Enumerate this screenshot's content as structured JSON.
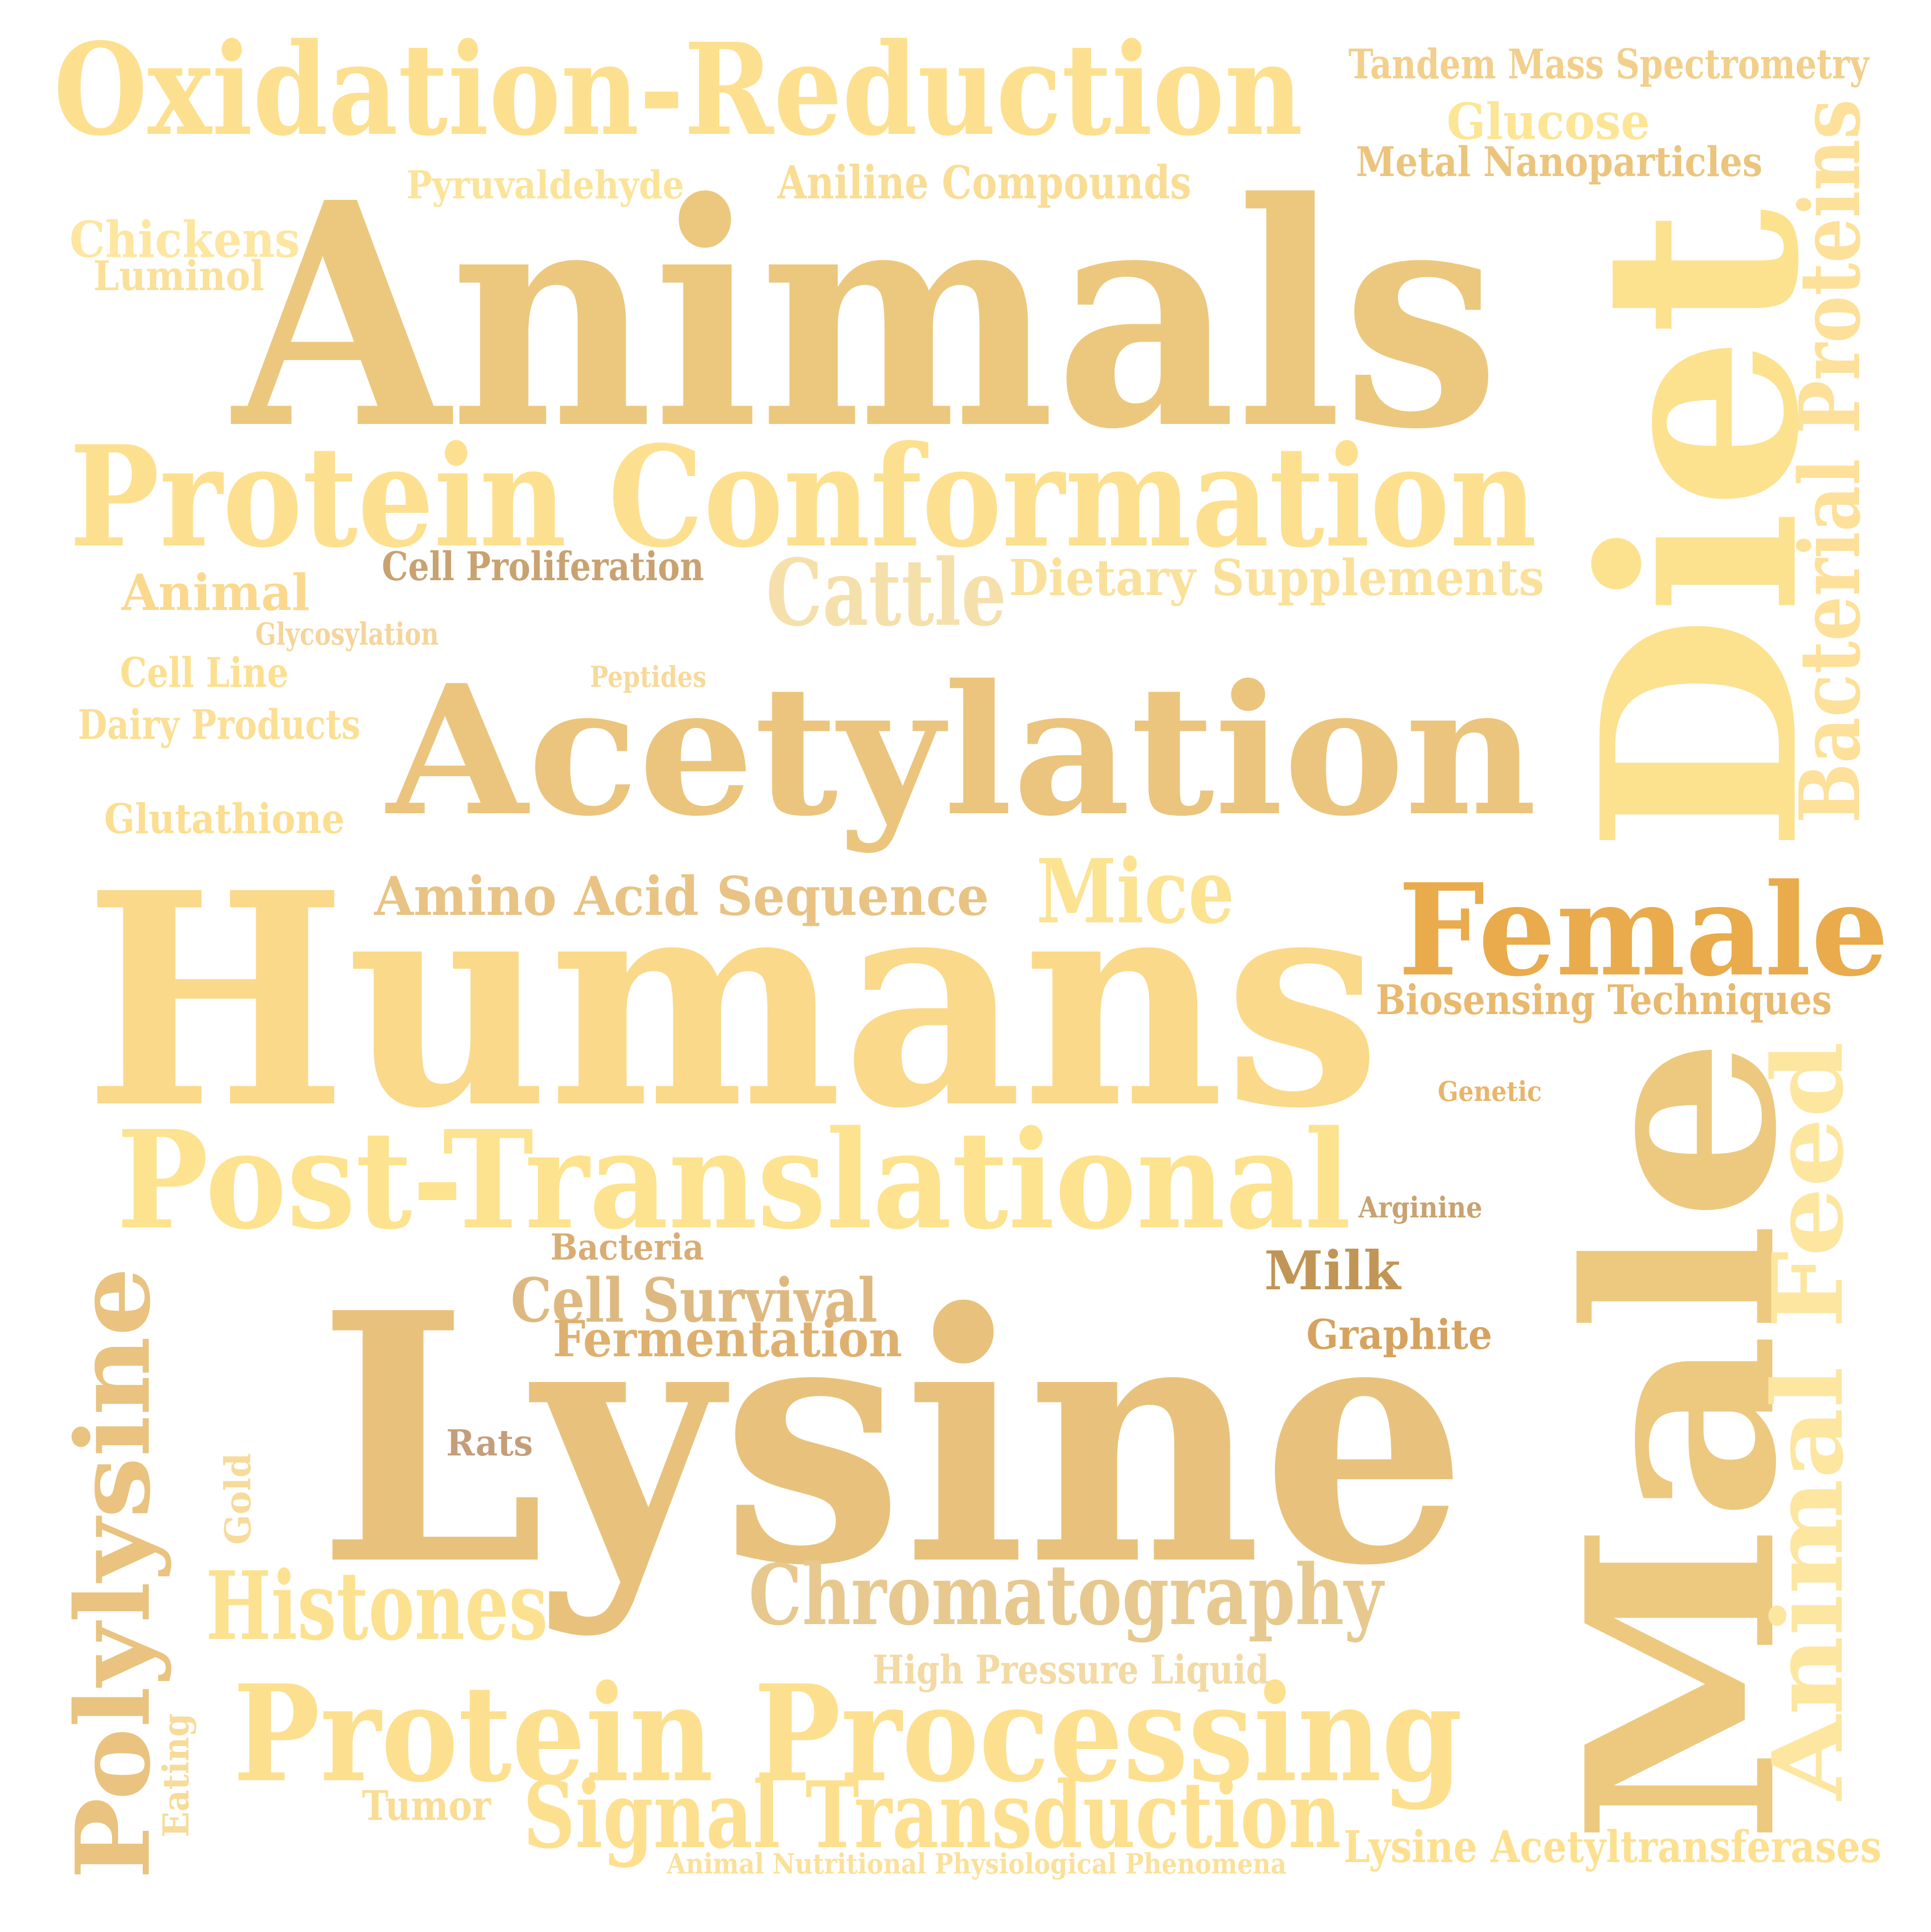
{
  "words": [
    {
      "id": "oxidation-reduction",
      "text": "Oxidation-Reduction",
      "color": "#FDE08F"
    },
    {
      "id": "tandem-mass-spectrometry",
      "text": "Tandem Mass Spectrometry",
      "color": "#F2CF8A"
    },
    {
      "id": "glucose",
      "text": "Glucose",
      "color": "#FCE594"
    },
    {
      "id": "metal-nanoparticles",
      "text": "Metal Nanoparticles",
      "color": "#EBC57E"
    },
    {
      "id": "pyruvaldehyde",
      "text": "Pyruvaldehyde",
      "color": "#FBE49A"
    },
    {
      "id": "aniline-compounds",
      "text": "Aniline Compounds",
      "color": "#F9DD95"
    },
    {
      "id": "chickens",
      "text": "Chickens",
      "color": "#FDE6A0"
    },
    {
      "id": "luminol",
      "text": "Luminol",
      "color": "#FAE098"
    },
    {
      "id": "animals",
      "text": "Animals",
      "color": "#ECC87E"
    },
    {
      "id": "diet",
      "text": "Diet",
      "color": "#FCE28F"
    },
    {
      "id": "bacterial-proteins",
      "text": "Bacterial Proteins",
      "color": "#FDE19A"
    },
    {
      "id": "protein-conformation",
      "text": "Protein Conformation",
      "color": "#FDE08F"
    },
    {
      "id": "cell-proliferation",
      "text": "Cell Proliferation",
      "color": "#C9A271"
    },
    {
      "id": "animal",
      "text": "Animal",
      "color": "#FAD98E"
    },
    {
      "id": "cattle",
      "text": "Cattle",
      "color": "#F5E0AC"
    },
    {
      "id": "dietary-supplements",
      "text": "Dietary Supplements",
      "color": "#FAE19B"
    },
    {
      "id": "glycosylation",
      "text": "Glycosylation",
      "color": "#F4D59A"
    },
    {
      "id": "cell-line",
      "text": "Cell Line",
      "color": "#FCE091"
    },
    {
      "id": "peptides",
      "text": "Peptides",
      "color": "#F7D99A"
    },
    {
      "id": "dairy-products",
      "text": "Dairy Products",
      "color": "#FBDF95"
    },
    {
      "id": "acetylation",
      "text": "Acetylation",
      "color": "#EBC57E"
    },
    {
      "id": "glutathione",
      "text": "Glutathione",
      "color": "#FBDE91"
    },
    {
      "id": "humans",
      "text": "Humans",
      "color": "#FAD98A"
    },
    {
      "id": "amino-acid-sequence",
      "text": "Amino Acid Sequence",
      "color": "#E8C384"
    },
    {
      "id": "mice",
      "text": "Mice",
      "color": "#FCE392"
    },
    {
      "id": "female",
      "text": "Female",
      "color": "#E9AB4C"
    },
    {
      "id": "biosensing-techniques",
      "text": "Biosensing Techniques",
      "color": "#E8B96E"
    },
    {
      "id": "genetic",
      "text": "Genetic",
      "color": "#E8B56A"
    },
    {
      "id": "post-translational",
      "text": "Post-Translational",
      "color": "#FDE38F"
    },
    {
      "id": "arginine",
      "text": "Arginine",
      "color": "#C9A271"
    },
    {
      "id": "bacteria",
      "text": "Bacteria",
      "color": "#D8AD75"
    },
    {
      "id": "milk",
      "text": "Milk",
      "color": "#C19555"
    },
    {
      "id": "cell-survival",
      "text": "Cell Survival",
      "color": "#DDB981"
    },
    {
      "id": "fermentation",
      "text": "Fermentation",
      "color": "#DEB06F"
    },
    {
      "id": "graphite",
      "text": "Graphite",
      "color": "#D5A35F"
    },
    {
      "id": "male",
      "text": "Male",
      "color": "#ECC97F"
    },
    {
      "id": "animal-feed",
      "text": "Animal Feed",
      "color": "#FDE6A0"
    },
    {
      "id": "polylysine",
      "text": "Polylysine",
      "color": "#E9C37F"
    },
    {
      "id": "lysine",
      "text": "Lysine",
      "color": "#E8C27C"
    },
    {
      "id": "rats",
      "text": "Rats",
      "color": "#C49E7A"
    },
    {
      "id": "gold",
      "text": "Gold",
      "color": "#F6DB9A"
    },
    {
      "id": "histones",
      "text": "Histones",
      "color": "#FCE290"
    },
    {
      "id": "chromatography",
      "text": "Chromatography",
      "color": "#E7C98F"
    },
    {
      "id": "high-pressure-liquid",
      "text": "High Pressure Liquid",
      "color": "#F3D9A3"
    },
    {
      "id": "protein-processing",
      "text": "Protein Processing",
      "color": "#FDE08F"
    },
    {
      "id": "eating",
      "text": "Eating",
      "color": "#F6DB9A"
    },
    {
      "id": "tumor",
      "text": "Tumor",
      "color": "#F9DD95"
    },
    {
      "id": "signal-transduction",
      "text": "Signal Transduction",
      "color": "#FDE08F"
    },
    {
      "id": "animal-nutritional-physiological-phenomena",
      "text": "Animal Nutritional Physiological Phenomena",
      "color": "#FAE09A"
    },
    {
      "id": "lysine-acetyltransferases",
      "text": "Lysine Acetyltransferases",
      "color": "#FDE08F"
    }
  ]
}
